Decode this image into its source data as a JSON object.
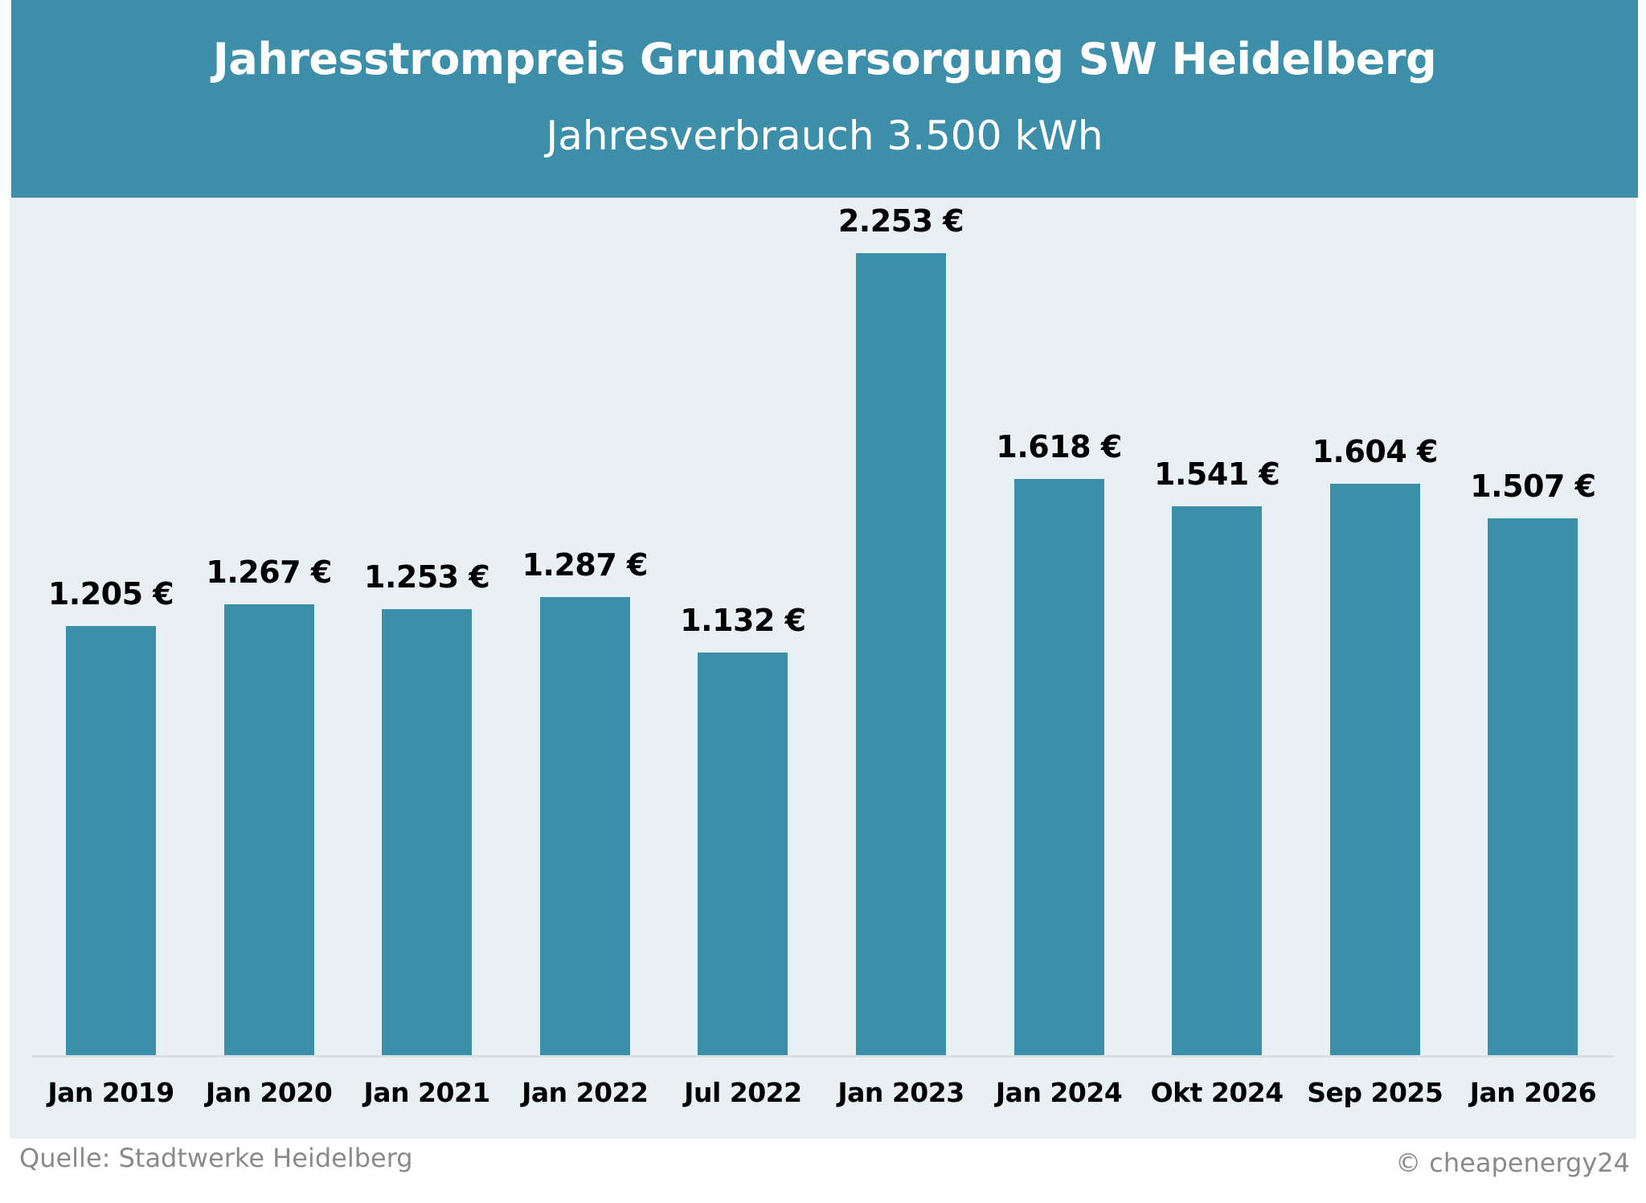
{
  "chart_data": {
    "type": "bar",
    "title": "Jahresstrompreis Grundversorgung SW Heidelberg",
    "subtitle": "Jahresverbrauch 3.500 kWh",
    "categories": [
      "Jan 2019",
      "Jan 2020",
      "Jan 2021",
      "Jan 2022",
      "Jul 2022",
      "Jan 2023",
      "Jan 2024",
      "Okt 2024",
      "Sep 2025",
      "Jan 2026"
    ],
    "values": [
      1205,
      1267,
      1253,
      1287,
      1132,
      2253,
      1618,
      1541,
      1604,
      1507
    ],
    "value_labels": [
      "1.205 €",
      "1.267 €",
      "1.253 €",
      "1.287 €",
      "1.132 €",
      "2.253 €",
      "1.618 €",
      "1.541 €",
      "1.604 €",
      "1.507 €"
    ],
    "xlabel": "",
    "ylabel": "",
    "ylim": [
      0,
      2253
    ],
    "grid": false,
    "legend": "none",
    "colors": {
      "bar": "#3c8fa8",
      "header": "#3d8ea8",
      "background": "#e8f0f3"
    }
  },
  "footer": {
    "source": "Quelle: Stadtwerke Heidelberg",
    "copyright": "© cheapenergy24"
  }
}
